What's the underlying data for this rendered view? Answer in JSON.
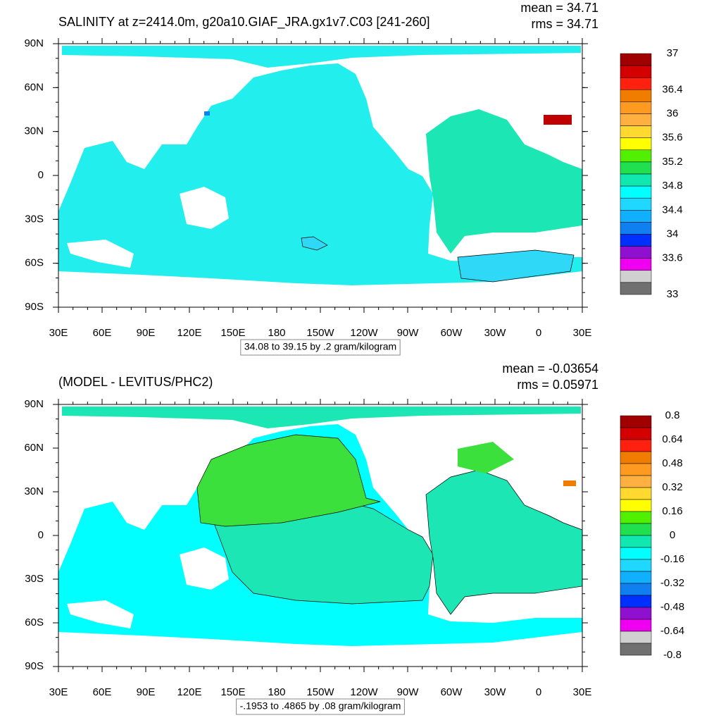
{
  "lat_labels": [
    "90N",
    "60N",
    "30N",
    "0",
    "30S",
    "60S",
    "90S"
  ],
  "lon_labels": [
    "30E",
    "60E",
    "90E",
    "120E",
    "150E",
    "180",
    "150W",
    "120W",
    "90W",
    "60W",
    "30W",
    "0",
    "30E"
  ],
  "panels": [
    {
      "title": "SALINITY at z=2414.0m, g20a10.GIAF_JRA.gx1v7.C03 [241-260]",
      "stats": [
        "mean = 34.71",
        "rms = 34.71"
      ],
      "footer": "34.08 to 39.15 by .2 gram/kilogram",
      "colorbar": {
        "colors": [
          "#a00000",
          "#d40000",
          "#ff2010",
          "#f07c00",
          "#ff9a20",
          "#ffb040",
          "#ffd830",
          "#ffff00",
          "#50f000",
          "#20e050",
          "#10e8b0",
          "#00ffff",
          "#20d8ff",
          "#10b0ff",
          "#1080f0",
          "#0030ff",
          "#9010d0",
          "#f000f0",
          "#d0d0d0",
          "#707070"
        ],
        "labels": [
          "37",
          "36.4",
          "36",
          "35.6",
          "35.2",
          "34.8",
          "34.4",
          "34",
          "33.6",
          "33"
        ]
      }
    },
    {
      "title": "(MODEL - LEVITUS/PHC2)",
      "stats": [
        "mean = -0.03654",
        "rms = 0.05971"
      ],
      "footer": "-.1953 to .4865 by .08 gram/kilogram",
      "colorbar": {
        "colors": [
          "#a00000",
          "#d40000",
          "#ff2010",
          "#f07c00",
          "#ff9a20",
          "#ffb040",
          "#ffd830",
          "#ffff00",
          "#50f000",
          "#20e050",
          "#10e8b0",
          "#00ffff",
          "#20d8ff",
          "#10b0ff",
          "#1080f0",
          "#0030ff",
          "#9010d0",
          "#f000f0",
          "#d0d0d0",
          "#707070"
        ],
        "labels": [
          "0.8",
          "0.64",
          "0.48",
          "0.32",
          "0.16",
          "0",
          "-0.16",
          "-0.32",
          "-0.48",
          "-0.64",
          "-0.8"
        ]
      }
    }
  ]
}
